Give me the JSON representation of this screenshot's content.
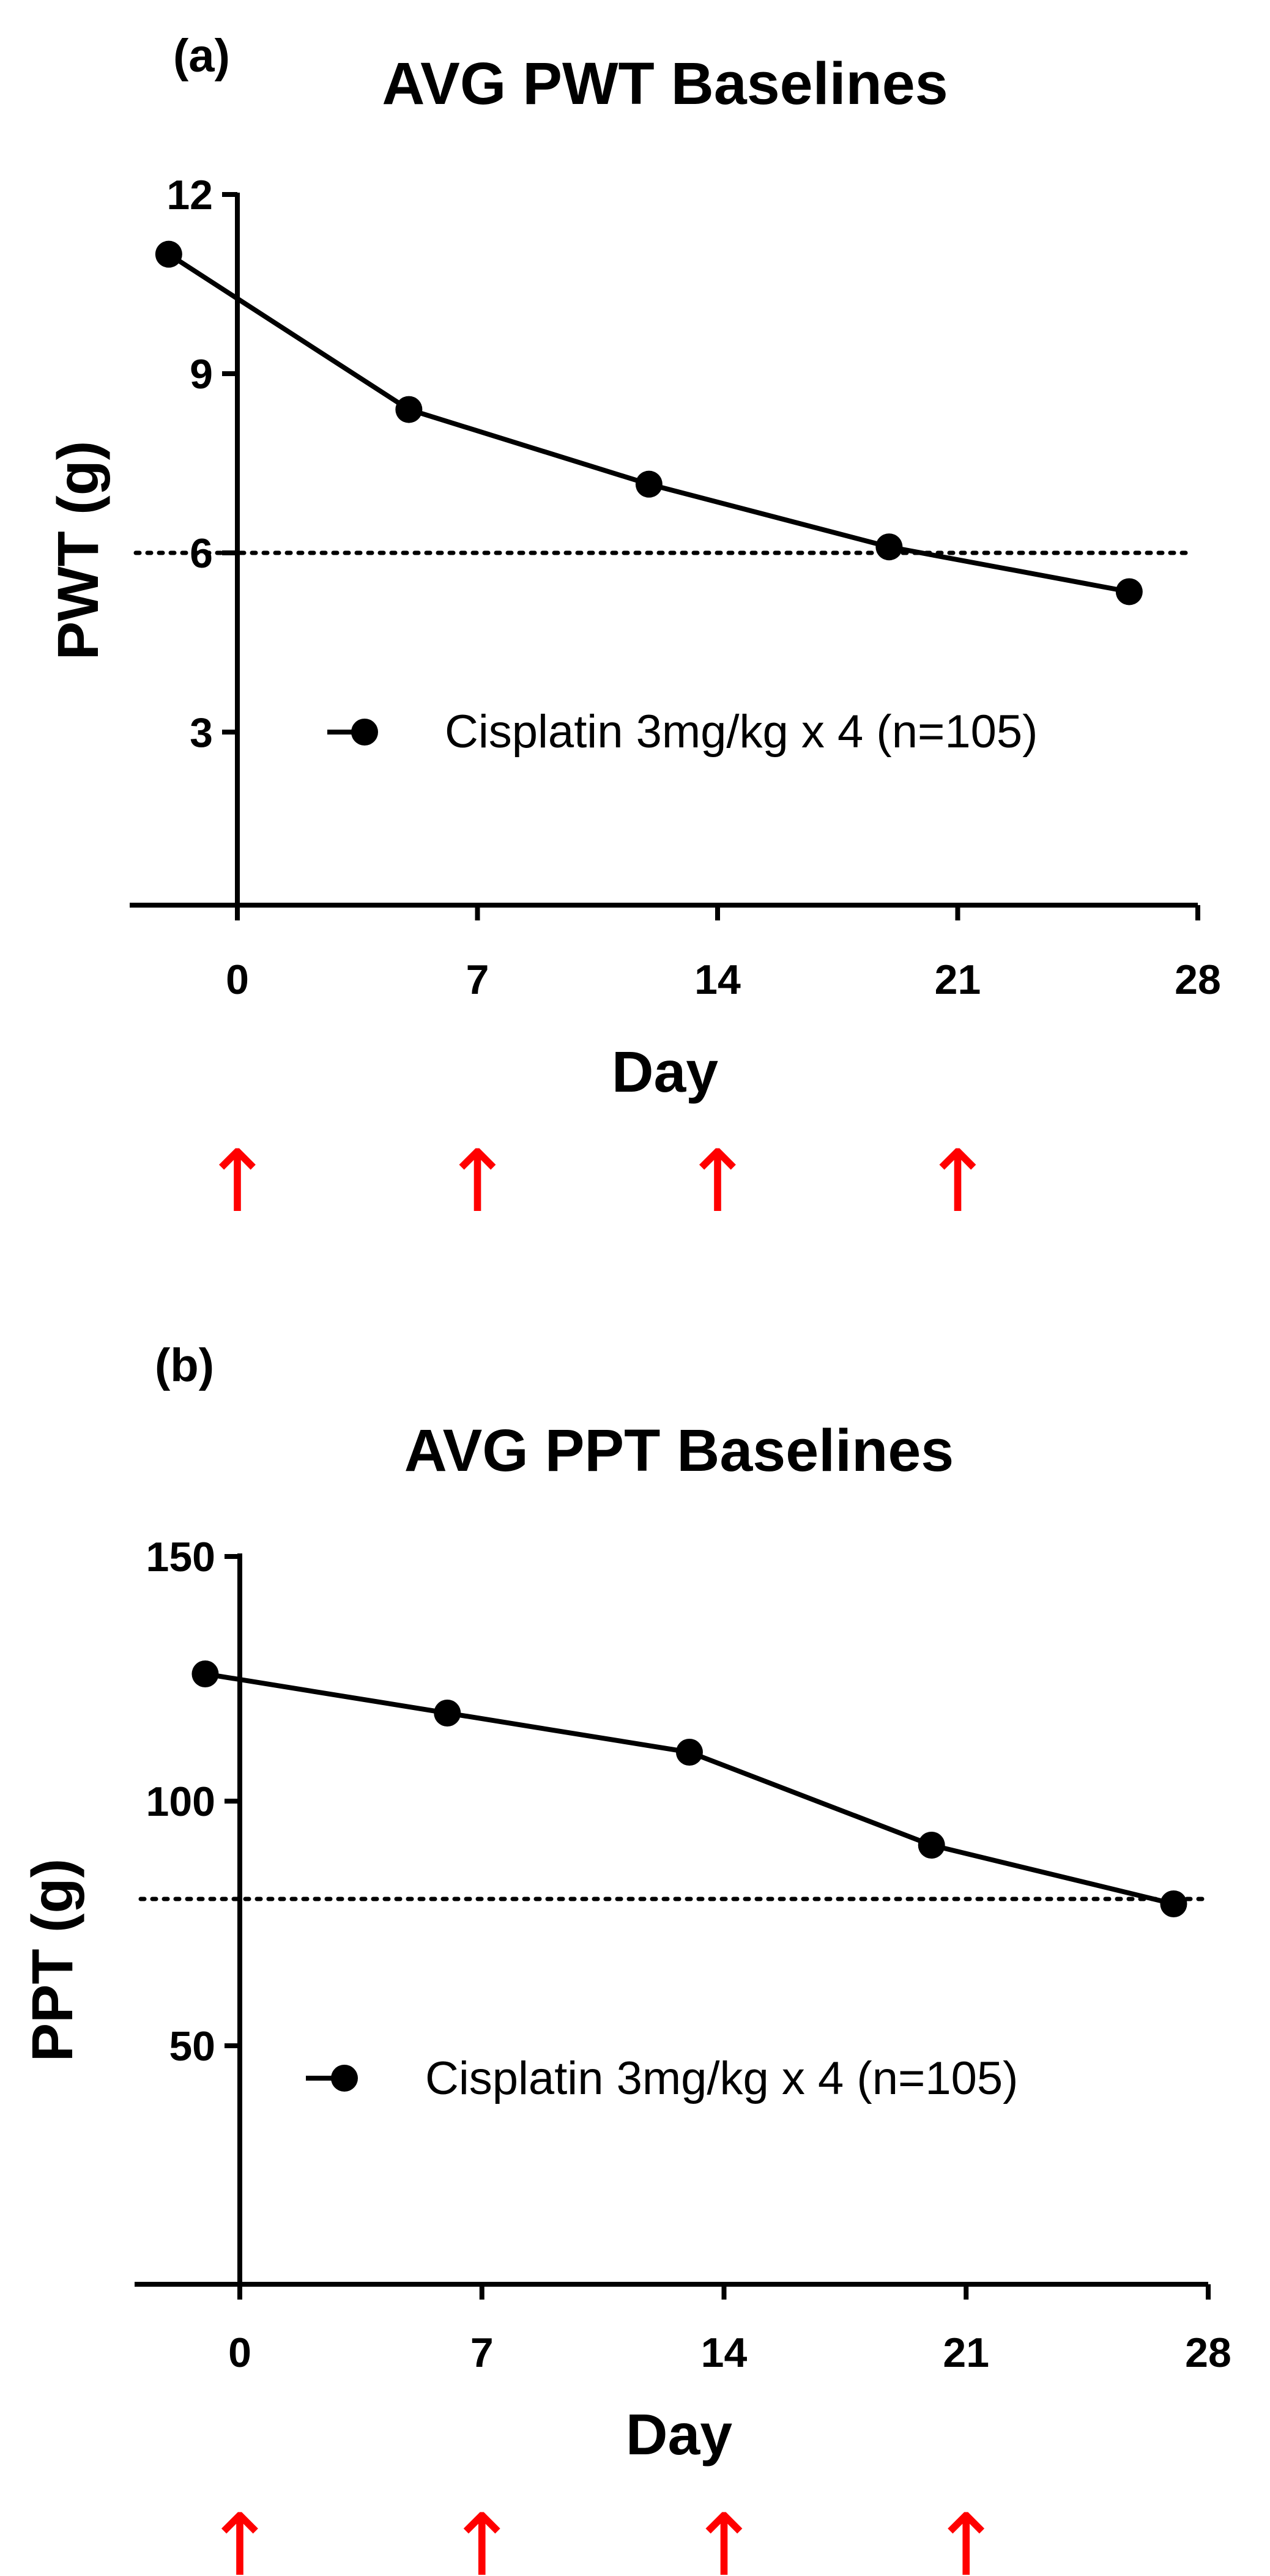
{
  "chart_data": [
    {
      "type": "line",
      "panel_label": "(a)",
      "title": "AVG PWT Baselines",
      "xlabel": "Day",
      "ylabel": "PWT (g)",
      "xlim": [
        -2.5,
        28
      ],
      "ylim": [
        0,
        12
      ],
      "xticks": [
        "0",
        "7",
        "14",
        "21",
        "28"
      ],
      "yticks": [
        "3",
        "6",
        "9",
        "12"
      ],
      "xtick_values": [
        0,
        7,
        14,
        21,
        28
      ],
      "ytick_values": [
        3,
        6,
        9,
        12
      ],
      "threshold": 6,
      "grid": false,
      "legend_position": "middle-right",
      "series": [
        {
          "name": "Cisplatin 3mg/kg x 4 (n=105)",
          "x": [
            -2,
            5,
            12,
            19,
            26
          ],
          "y": [
            11.0,
            8.4,
            7.15,
            6.1,
            5.35
          ],
          "color": "#000000"
        }
      ],
      "dosing_days": [
        0,
        7,
        14,
        21
      ],
      "arrow_color": "#ff0000"
    },
    {
      "type": "line",
      "panel_label": "(b)",
      "title": "AVG PPT Baselines",
      "xlabel": "Day",
      "ylabel": "PPT (g)",
      "xlim": [
        -3,
        28
      ],
      "ylim": [
        0,
        150
      ],
      "xticks": [
        "0",
        "7",
        "14",
        "21",
        "28"
      ],
      "yticks": [
        "50",
        "100",
        "150"
      ],
      "xtick_values": [
        0,
        7,
        14,
        21,
        28
      ],
      "ytick_values": [
        50,
        100,
        150
      ],
      "threshold": 80,
      "grid": false,
      "legend_position": "middle-right",
      "series": [
        {
          "name": "Cisplatin 3mg/kg x 4 (n=105)",
          "x": [
            -1,
            6,
            13,
            20,
            27
          ],
          "y": [
            126,
            118,
            110,
            91,
            79
          ],
          "color": "#000000"
        }
      ],
      "dosing_days": [
        0,
        7,
        14,
        21
      ],
      "arrow_color": "#ff0000"
    }
  ]
}
